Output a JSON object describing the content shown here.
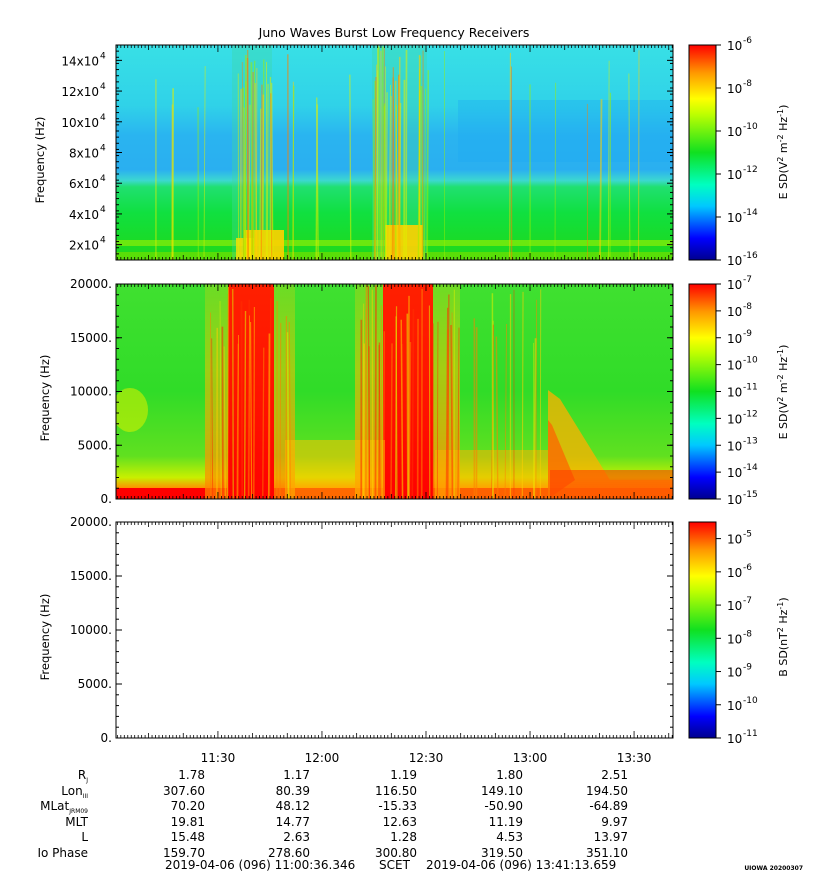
{
  "chart_data": [
    {
      "type": "heatmap",
      "title": "Juno Waves Burst Low Frequency Receivers",
      "ylabel": "Frequency (Hz)",
      "ylim": [
        10000,
        150000
      ],
      "yticks": [
        {
          "value": 20000,
          "mant": "2x10",
          "exp": "4"
        },
        {
          "value": 40000,
          "mant": "4x10",
          "exp": "4"
        },
        {
          "value": 60000,
          "mant": "6x10",
          "exp": "4"
        },
        {
          "value": 80000,
          "mant": "8x10",
          "exp": "4"
        },
        {
          "value": 100000,
          "mant": "10x10",
          "exp": "4"
        },
        {
          "value": 120000,
          "mant": "12x10",
          "exp": "4"
        },
        {
          "value": 140000,
          "mant": "14x10",
          "exp": "4"
        }
      ],
      "colorbar": {
        "label_parts": [
          "E SD(V",
          "2",
          " m",
          "-2",
          " Hz",
          "-1",
          ")"
        ],
        "log_range": [
          -16,
          -6
        ],
        "ticks": [
          {
            "exp": "-6",
            "value": -6
          },
          {
            "exp": "-8",
            "value": -8
          },
          {
            "exp": "-10",
            "value": -10
          },
          {
            "exp": "-12",
            "value": -12
          },
          {
            "exp": "-14",
            "value": -14
          },
          {
            "exp": "-16",
            "value": -16
          }
        ]
      }
    },
    {
      "type": "heatmap",
      "ylabel": "Frequency (Hz)",
      "ylim": [
        0,
        20000
      ],
      "yticks": [
        {
          "value": 0,
          "label": "0."
        },
        {
          "value": 5000,
          "label": "5000."
        },
        {
          "value": 10000,
          "label": "10000."
        },
        {
          "value": 15000,
          "label": "15000."
        },
        {
          "value": 20000,
          "label": "20000."
        }
      ],
      "colorbar": {
        "label_parts": [
          "E SD(V",
          "2",
          " m",
          "-2",
          " Hz",
          "-1",
          ")"
        ],
        "log_range": [
          -15,
          -7
        ],
        "ticks": [
          {
            "exp": "-7",
            "value": -7
          },
          {
            "exp": "-8",
            "value": -8
          },
          {
            "exp": "-9",
            "value": -9
          },
          {
            "exp": "-10",
            "value": -10
          },
          {
            "exp": "-11",
            "value": -11
          },
          {
            "exp": "-12",
            "value": -12
          },
          {
            "exp": "-13",
            "value": -13
          },
          {
            "exp": "-14",
            "value": -14
          },
          {
            "exp": "-15",
            "value": -15
          }
        ]
      }
    },
    {
      "type": "heatmap",
      "ylabel": "Frequency (Hz)",
      "ylim": [
        0,
        20000
      ],
      "yticks": [
        {
          "value": 0,
          "label": "0."
        },
        {
          "value": 5000,
          "label": "5000."
        },
        {
          "value": 10000,
          "label": "10000."
        },
        {
          "value": 15000,
          "label": "15000."
        },
        {
          "value": 20000,
          "label": "20000."
        }
      ],
      "colorbar": {
        "label_parts": [
          "B SD(nT",
          "2",
          " Hz",
          "-1",
          ")"
        ],
        "log_range": [
          -11,
          -4.5
        ],
        "ticks": [
          {
            "exp": "-5",
            "value": -5
          },
          {
            "exp": "-6",
            "value": -6
          },
          {
            "exp": "-7",
            "value": -7
          },
          {
            "exp": "-8",
            "value": -8
          },
          {
            "exp": "-9",
            "value": -9
          },
          {
            "exp": "-10",
            "value": -10
          },
          {
            "exp": "-11",
            "value": -11
          }
        ]
      }
    }
  ],
  "time_axis": {
    "range": [
      "11:00:36.346",
      "13:41:13.659"
    ],
    "tick_labels": [
      "11:30",
      "12:00",
      "12:30",
      "13:00",
      "13:30"
    ],
    "tick_values_min": [
      690,
      720,
      750,
      780,
      810
    ],
    "start_min": 660.6058,
    "end_min": 821.2277
  },
  "ephemeris": {
    "rows": [
      {
        "label": "R",
        "sub": "J",
        "values": [
          "1.78",
          "1.17",
          "1.19",
          "1.80",
          "2.51"
        ]
      },
      {
        "label": "Lon",
        "sub": "III",
        "values": [
          "307.60",
          "80.39",
          "116.50",
          "149.10",
          "194.50"
        ]
      },
      {
        "label": "MLat",
        "sub": "JRM09",
        "values": [
          "70.20",
          "48.12",
          "-15.33",
          "-50.90",
          "-64.89"
        ]
      },
      {
        "label": "MLT",
        "sub": "",
        "values": [
          "19.81",
          "14.77",
          "12.63",
          "11.19",
          "9.97"
        ]
      },
      {
        "label": "L",
        "sub": "",
        "values": [
          "15.48",
          "2.63",
          "1.28",
          "4.53",
          "13.97"
        ]
      },
      {
        "label": "Io Phase",
        "sub": "",
        "values": [
          "159.70",
          "278.60",
          "300.80",
          "319.50",
          "351.10"
        ]
      }
    ]
  },
  "footer": {
    "start": "2019-04-06 (096) 11:00:36.346",
    "scet": "SCET",
    "end": "2019-04-06 (096) 13:41:13.659"
  },
  "stamp": "UIOWA 20200307"
}
